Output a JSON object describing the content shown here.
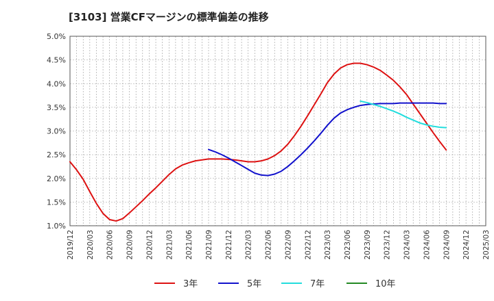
{
  "chart_data": {
    "type": "line",
    "title": "[3103]  営業CFマージンの標準偏差の推移",
    "xlabel": "",
    "ylabel": "",
    "ylim": [
      1.0,
      5.0
    ],
    "y_ticks": [
      "1.0%",
      "1.5%",
      "2.0%",
      "2.5%",
      "3.0%",
      "3.5%",
      "4.0%",
      "4.5%",
      "5.0%"
    ],
    "x_ticks": [
      "2019/12",
      "2020/03",
      "2020/06",
      "2020/09",
      "2020/12",
      "2021/03",
      "2021/06",
      "2021/09",
      "2021/12",
      "2022/03",
      "2022/06",
      "2022/09",
      "2022/12",
      "2023/03",
      "2023/06",
      "2023/09",
      "2023/12",
      "2024/03",
      "2024/06",
      "2024/09",
      "2024/12",
      "2025/03"
    ],
    "grid": true,
    "legend_position": "bottom",
    "series": [
      {
        "name": "3年",
        "color": "#dd1111",
        "points": [
          [
            "2019/12",
            2.35
          ],
          [
            "2020/01",
            2.18
          ],
          [
            "2020/02",
            1.98
          ],
          [
            "2020/03",
            1.72
          ],
          [
            "2020/04",
            1.47
          ],
          [
            "2020/05",
            1.26
          ],
          [
            "2020/06",
            1.13
          ],
          [
            "2020/07",
            1.1
          ],
          [
            "2020/08",
            1.15
          ],
          [
            "2020/09",
            1.27
          ],
          [
            "2020/10",
            1.4
          ],
          [
            "2020/11",
            1.53
          ],
          [
            "2020/12",
            1.67
          ],
          [
            "2021/01",
            1.8
          ],
          [
            "2021/02",
            1.94
          ],
          [
            "2021/03",
            2.08
          ],
          [
            "2021/04",
            2.2
          ],
          [
            "2021/05",
            2.28
          ],
          [
            "2021/06",
            2.33
          ],
          [
            "2021/07",
            2.37
          ],
          [
            "2021/08",
            2.39
          ],
          [
            "2021/09",
            2.41
          ],
          [
            "2021/10",
            2.41
          ],
          [
            "2021/11",
            2.41
          ],
          [
            "2021/12",
            2.4
          ],
          [
            "2022/01",
            2.39
          ],
          [
            "2022/02",
            2.37
          ],
          [
            "2022/03",
            2.35
          ],
          [
            "2022/04",
            2.35
          ],
          [
            "2022/05",
            2.37
          ],
          [
            "2022/06",
            2.41
          ],
          [
            "2022/07",
            2.48
          ],
          [
            "2022/08",
            2.58
          ],
          [
            "2022/09",
            2.72
          ],
          [
            "2022/10",
            2.9
          ],
          [
            "2022/11",
            3.1
          ],
          [
            "2022/12",
            3.32
          ],
          [
            "2023/01",
            3.55
          ],
          [
            "2023/02",
            3.78
          ],
          [
            "2023/03",
            4.02
          ],
          [
            "2023/04",
            4.2
          ],
          [
            "2023/05",
            4.33
          ],
          [
            "2023/06",
            4.4
          ],
          [
            "2023/07",
            4.43
          ],
          [
            "2023/08",
            4.43
          ],
          [
            "2023/09",
            4.4
          ],
          [
            "2023/10",
            4.35
          ],
          [
            "2023/11",
            4.28
          ],
          [
            "2023/12",
            4.18
          ],
          [
            "2024/01",
            4.07
          ],
          [
            "2024/02",
            3.93
          ],
          [
            "2024/03",
            3.77
          ],
          [
            "2024/04",
            3.57
          ],
          [
            "2024/05",
            3.37
          ],
          [
            "2024/06",
            3.17
          ],
          [
            "2024/07",
            2.97
          ],
          [
            "2024/08",
            2.78
          ],
          [
            "2024/09",
            2.6
          ]
        ]
      },
      {
        "name": "5年",
        "color": "#1111cc",
        "points": [
          [
            "2021/09",
            2.61
          ],
          [
            "2021/10",
            2.56
          ],
          [
            "2021/11",
            2.5
          ],
          [
            "2021/12",
            2.43
          ],
          [
            "2022/01",
            2.35
          ],
          [
            "2022/02",
            2.27
          ],
          [
            "2022/03",
            2.19
          ],
          [
            "2022/04",
            2.11
          ],
          [
            "2022/05",
            2.07
          ],
          [
            "2022/06",
            2.06
          ],
          [
            "2022/07",
            2.09
          ],
          [
            "2022/08",
            2.15
          ],
          [
            "2022/09",
            2.25
          ],
          [
            "2022/10",
            2.37
          ],
          [
            "2022/11",
            2.5
          ],
          [
            "2022/12",
            2.64
          ],
          [
            "2023/01",
            2.79
          ],
          [
            "2023/02",
            2.95
          ],
          [
            "2023/03",
            3.12
          ],
          [
            "2023/04",
            3.27
          ],
          [
            "2023/05",
            3.38
          ],
          [
            "2023/06",
            3.45
          ],
          [
            "2023/07",
            3.5
          ],
          [
            "2023/08",
            3.54
          ],
          [
            "2023/09",
            3.56
          ],
          [
            "2023/10",
            3.57
          ],
          [
            "2023/11",
            3.58
          ],
          [
            "2023/12",
            3.58
          ],
          [
            "2024/01",
            3.58
          ],
          [
            "2024/02",
            3.59
          ],
          [
            "2024/03",
            3.59
          ],
          [
            "2024/04",
            3.59
          ],
          [
            "2024/05",
            3.59
          ],
          [
            "2024/06",
            3.59
          ],
          [
            "2024/07",
            3.59
          ],
          [
            "2024/08",
            3.58
          ],
          [
            "2024/09",
            3.58
          ]
        ]
      },
      {
        "name": "7年",
        "color": "#22dddd",
        "points": [
          [
            "2023/08",
            3.63
          ],
          [
            "2023/09",
            3.6
          ],
          [
            "2023/10",
            3.56
          ],
          [
            "2023/11",
            3.52
          ],
          [
            "2023/12",
            3.47
          ],
          [
            "2024/01",
            3.42
          ],
          [
            "2024/02",
            3.36
          ],
          [
            "2024/03",
            3.29
          ],
          [
            "2024/04",
            3.23
          ],
          [
            "2024/05",
            3.17
          ],
          [
            "2024/06",
            3.13
          ],
          [
            "2024/07",
            3.1
          ],
          [
            "2024/08",
            3.08
          ],
          [
            "2024/09",
            3.07
          ]
        ]
      },
      {
        "name": "10年",
        "color": "#228822",
        "points": []
      }
    ]
  }
}
